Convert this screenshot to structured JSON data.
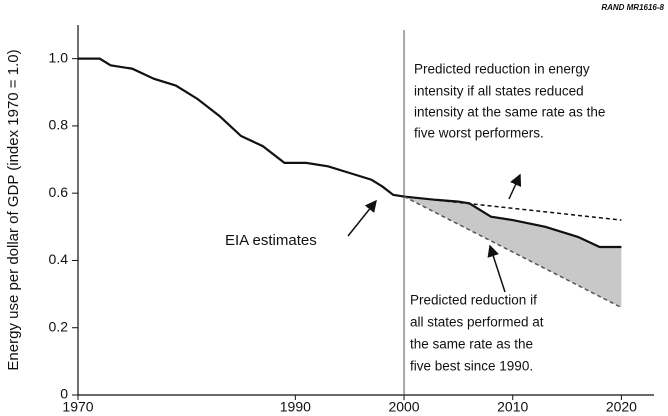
{
  "chart_data": {
    "type": "line",
    "source": "RAND MR1616-8",
    "ylabel": "Energy use per dollar of GDP (index 1970 = 1.0)",
    "xlim": [
      1970,
      2023
    ],
    "ylim": [
      0,
      1.1
    ],
    "xticks": [
      1970,
      1990,
      2000,
      2010,
      2020
    ],
    "yticks": [
      0,
      0.2,
      0.4,
      0.6,
      0.8,
      {
        "value": 1,
        "label": "1.0"
      }
    ],
    "vline": 2000,
    "series": [
      {
        "color": "#111111",
        "style": "solid",
        "x": [
          1970,
          1972,
          1973,
          1975,
          1977,
          1979,
          1981,
          1983,
          1985,
          1987,
          1989,
          1991,
          1993,
          1995,
          1997,
          1998,
          1999,
          2000
        ],
        "values": [
          1.0,
          1.0,
          0.98,
          0.97,
          0.94,
          0.92,
          0.88,
          0.83,
          0.77,
          0.74,
          0.69,
          0.69,
          0.68,
          0.66,
          0.64,
          0.62,
          0.595,
          0.59
        ]
      },
      {
        "color": "#111111",
        "style": "solid",
        "x": [
          2000,
          2003,
          2005,
          2006,
          2008,
          2010,
          2013,
          2016,
          2018,
          2020
        ],
        "values": [
          0.59,
          0.58,
          0.575,
          0.57,
          0.53,
          0.52,
          0.5,
          0.47,
          0.44,
          0.44
        ]
      },
      {
        "color": "#111111",
        "style": "dashed",
        "x": [
          2000,
          2020
        ],
        "values": [
          0.59,
          0.52
        ]
      },
      {
        "color": "#555555",
        "style": "dashed",
        "x": [
          2000,
          2020
        ],
        "values": [
          0.59,
          0.26
        ]
      }
    ],
    "fill_color": "#c8c8c8",
    "annotations": [
      [
        "Predicted reduction in energy",
        "intensity if all states reduced",
        "intensity at the same rate as the",
        "five worst performers."
      ],
      [
        "EIA estimates"
      ],
      [
        "Predicted reduction if",
        "all states performed at",
        "the same rate as the",
        "five best since 1990."
      ]
    ]
  }
}
